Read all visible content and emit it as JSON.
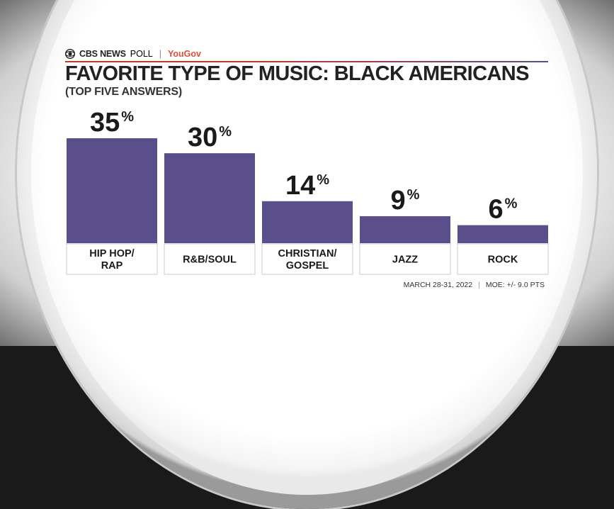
{
  "brand": {
    "cbs": "CBS NEWS",
    "poll": "POLL",
    "separator": "|",
    "partner": "YouGov"
  },
  "colors": {
    "bar": "#5b4f8b",
    "partner": "#e0503c",
    "rule_left": "#c0392b",
    "rule_right": "#5c4e88"
  },
  "footer": {
    "date": "MARCH 28-31, 2022",
    "separator": "|",
    "moe": "MOE: +/- 9.0 PTS"
  },
  "chart_data": {
    "type": "bar",
    "title": "FAVORITE TYPE OF MUSIC: BLACK AMERICANS",
    "subtitle": "(TOP FIVE ANSWERS)",
    "categories": [
      [
        "HIP HOP/",
        "RAP"
      ],
      [
        "R&B/SOUL"
      ],
      [
        "CHRISTIAN/",
        "GOSPEL"
      ],
      [
        "JAZZ"
      ],
      [
        "ROCK"
      ]
    ],
    "values": [
      35,
      30,
      14,
      9,
      6
    ],
    "unit": "%",
    "xlabel": "",
    "ylabel": "",
    "ylim": [
      0,
      35
    ],
    "grid": false,
    "legend": "none"
  }
}
